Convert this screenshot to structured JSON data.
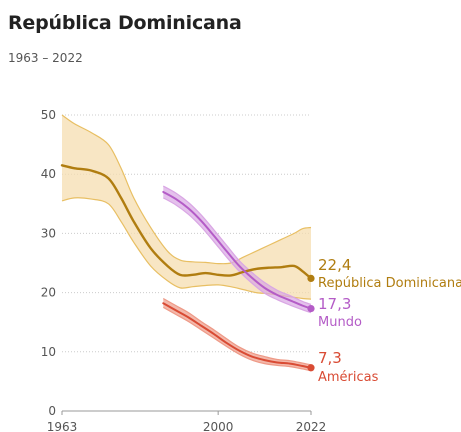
{
  "header": {
    "title": "República Dominicana",
    "subtitle": "1963 – 2022"
  },
  "colors": {
    "dominicana": "#b07d10",
    "dominicana_band_fill": "#f6deb0",
    "dominicana_band_stroke": "#e8bf63",
    "mundo": "#b45cc7",
    "mundo_band": "#d9a6e4",
    "americas": "#d94b34",
    "americas_band": "#ee9a87",
    "grid": "#cccccc",
    "axis": "#999999"
  },
  "chart_data": {
    "type": "line",
    "title": "República Dominicana",
    "subtitle": "1963 – 2022",
    "xlabel": "",
    "ylabel": "",
    "xlim": [
      1963,
      2022
    ],
    "ylim": [
      0,
      50
    ],
    "yticks": [
      0,
      10,
      20,
      30,
      40,
      50
    ],
    "xticks": [
      1963,
      2000,
      2022
    ],
    "grid": true,
    "series": [
      {
        "name": "República Dominicana",
        "key": "dom",
        "end_label": "22,4",
        "x": [
          1963,
          1966,
          1970,
          1974,
          1977,
          1980,
          1984,
          1988,
          1991,
          1994,
          1997,
          2000,
          2003,
          2006,
          2009,
          2012,
          2015,
          2018,
          2020,
          2022
        ],
        "y": [
          41.5,
          41.0,
          40.6,
          39.3,
          36.0,
          32.0,
          27.5,
          24.5,
          23.0,
          23.0,
          23.3,
          23.0,
          22.9,
          23.5,
          24.0,
          24.2,
          24.3,
          24.5,
          23.6,
          22.4
        ],
        "lower": [
          35.5,
          36.0,
          35.8,
          35.0,
          32.0,
          28.5,
          24.5,
          22.0,
          20.8,
          21.0,
          21.2,
          21.3,
          21.0,
          20.5,
          20.0,
          19.8,
          19.5,
          19.2,
          19.0,
          18.9
        ],
        "upper": [
          50.0,
          48.5,
          47.0,
          45.0,
          41.0,
          36.0,
          31.0,
          27.0,
          25.5,
          25.2,
          25.1,
          24.9,
          25.0,
          26.0,
          27.0,
          28.0,
          29.0,
          30.0,
          30.8,
          31.0
        ]
      },
      {
        "name": "Mundo",
        "key": "mundo",
        "end_label": "17,3",
        "x": [
          1987,
          1990,
          1993,
          1996,
          1999,
          2002,
          2005,
          2008,
          2011,
          2014,
          2017,
          2020,
          2022
        ],
        "y": [
          37.0,
          35.8,
          34.2,
          32.1,
          29.6,
          27.0,
          24.5,
          22.5,
          20.8,
          19.6,
          18.7,
          17.8,
          17.3
        ],
        "lower": [
          36.0,
          34.8,
          33.2,
          31.1,
          28.6,
          26.0,
          23.6,
          21.6,
          19.9,
          18.8,
          17.9,
          17.1,
          16.6
        ],
        "upper": [
          38.0,
          36.8,
          35.2,
          33.1,
          30.6,
          28.0,
          25.4,
          23.4,
          21.7,
          20.4,
          19.5,
          18.5,
          18.0
        ]
      },
      {
        "name": "Américas",
        "key": "americas",
        "end_label": "7,3",
        "x": [
          1987,
          1990,
          1993,
          1996,
          1999,
          2002,
          2005,
          2008,
          2011,
          2014,
          2017,
          2020,
          2022
        ],
        "y": [
          18.2,
          17.0,
          15.8,
          14.4,
          13.0,
          11.5,
          10.2,
          9.2,
          8.6,
          8.2,
          8.0,
          7.6,
          7.3
        ],
        "lower": [
          17.5,
          16.3,
          15.1,
          13.7,
          12.3,
          10.9,
          9.6,
          8.6,
          8.0,
          7.7,
          7.5,
          7.1,
          6.8
        ],
        "upper": [
          19.0,
          17.8,
          16.6,
          15.1,
          13.7,
          12.2,
          10.8,
          9.8,
          9.2,
          8.7,
          8.5,
          8.1,
          7.8
        ]
      }
    ],
    "end_labels": [
      {
        "series": "dom",
        "value": "22,4",
        "name": "República Dominicana"
      },
      {
        "series": "mundo",
        "value": "17,3",
        "name": "Mundo"
      },
      {
        "series": "americas",
        "value": "7,3",
        "name": "Américas"
      }
    ]
  }
}
